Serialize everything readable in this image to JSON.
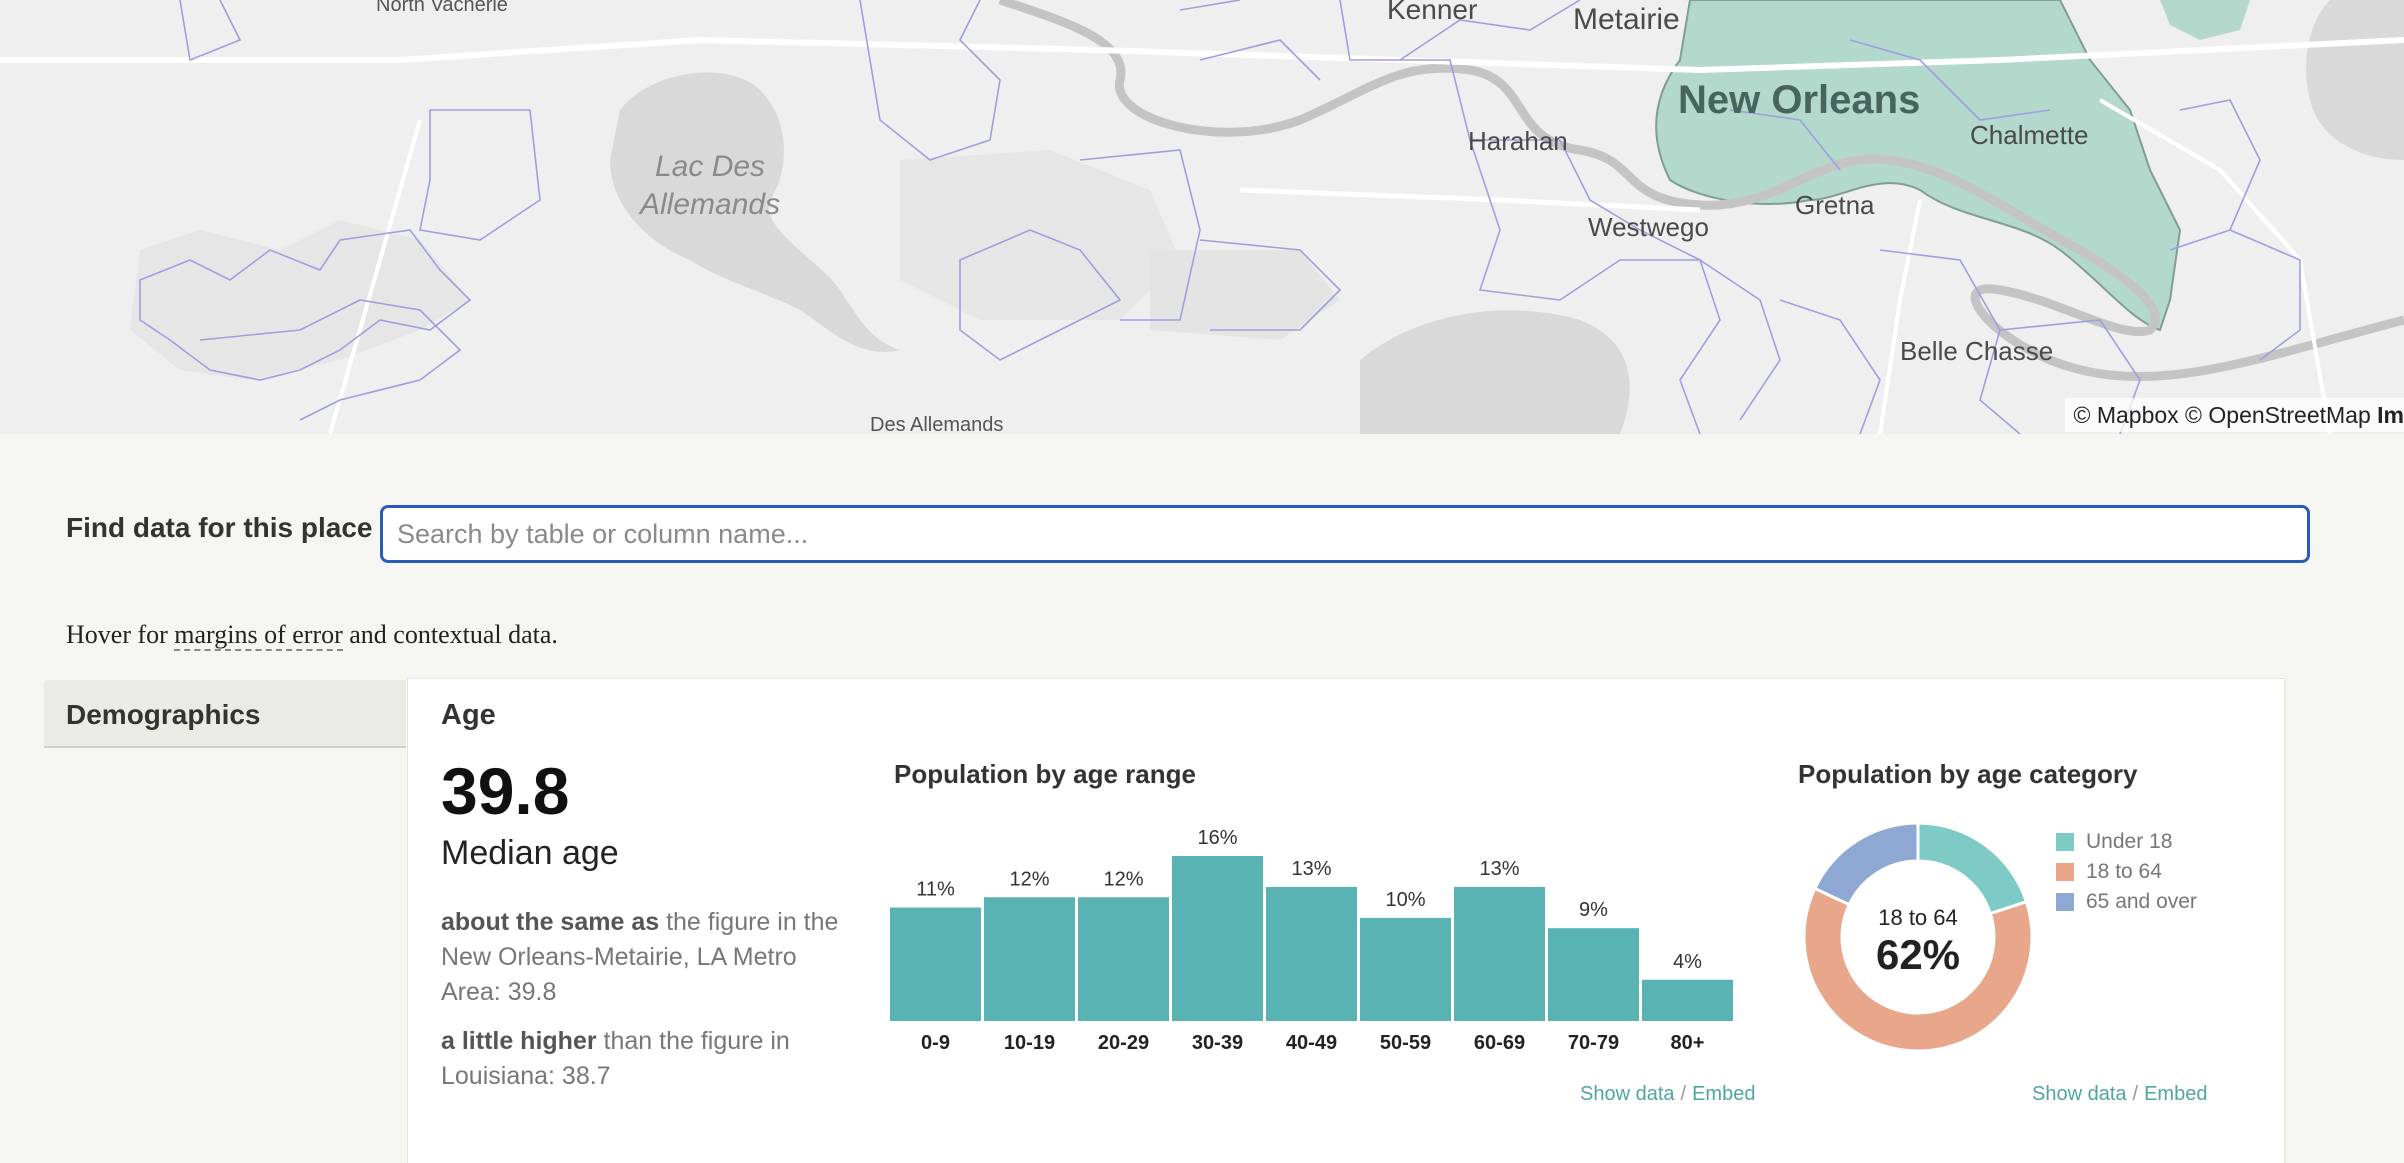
{
  "map": {
    "labels": {
      "north_vacherie": "North Vacherie",
      "kenner": "Kenner",
      "metairie": "Metairie",
      "new_orleans": "New Orleans",
      "harahan": "Harahan",
      "chalmette": "Chalmette",
      "gretna": "Gretna",
      "westwego": "Westwego",
      "belle_chasse": "Belle Chasse",
      "des_allemands": "Des Allemands",
      "lac_line1": "Lac Des",
      "lac_line2": "Allemands"
    },
    "attribution": {
      "mapbox": "© Mapbox",
      "osm": "© OpenStreetMap",
      "improve": "Im"
    },
    "colors": {
      "highlight": "#a9d5c6",
      "boundary": "#9f9fe0",
      "water": "#d9d9d9"
    }
  },
  "search": {
    "label": "Find data for this place",
    "placeholder": "Search by table or column name..."
  },
  "note": {
    "prefix": "Hover for ",
    "link": "margins of error",
    "suffix": " and contextual data."
  },
  "sidebar": {
    "items": [
      {
        "label": "Demographics"
      }
    ]
  },
  "age": {
    "title": "Age",
    "median_value": "39.8",
    "median_label": "Median age",
    "compare_metro": {
      "bold": "about the same as",
      "text": " the figure in the New Orleans-Metairie, LA Metro Area: 39.8"
    },
    "compare_state": {
      "bold": "a little higher",
      "text": " than the figure in Louisiana: 38.7"
    }
  },
  "age_range_chart": {
    "title": "Population by age range"
  },
  "age_category_chart": {
    "title": "Population by age category",
    "center_label": "18 to 64",
    "center_value": "62%"
  },
  "links": {
    "show_data": "Show data",
    "separator": "/",
    "embed": "Embed"
  },
  "chart_data": [
    {
      "type": "bar",
      "title": "Population by age range",
      "categories": [
        "0-9",
        "10-19",
        "20-29",
        "30-39",
        "40-49",
        "50-59",
        "60-69",
        "70-79",
        "80+"
      ],
      "values": [
        11,
        12,
        12,
        16,
        13,
        10,
        13,
        9,
        4
      ],
      "labels": [
        "11%",
        "12%",
        "12%",
        "16%",
        "13%",
        "10%",
        "13%",
        "9%",
        "4%"
      ],
      "color": "#5ab3b3"
    },
    {
      "type": "pie",
      "title": "Population by age category",
      "categories": [
        "Under 18",
        "18 to 64",
        "65 and over"
      ],
      "values": [
        20,
        62,
        18
      ],
      "colors": [
        "#7dcac6",
        "#e8a68a",
        "#8fa7d3"
      ]
    }
  ]
}
